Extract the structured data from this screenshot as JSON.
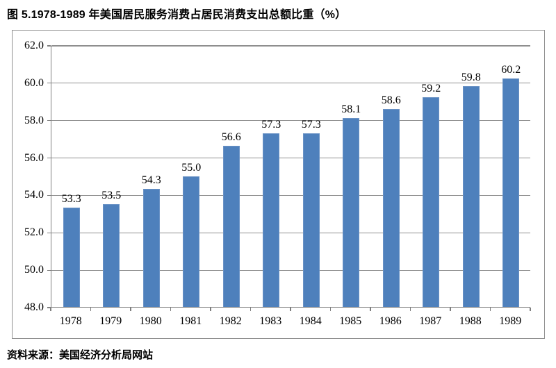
{
  "page": {
    "title": "图 5.1978-1989 年美国居民服务消费占居民消费支出总额比重（%）",
    "source_note": "资料来源：美国经济分析局网站"
  },
  "chart_data": {
    "type": "bar",
    "title": "图 5.1978-1989 年美国居民服务消费占居民消费支出总额比重（%）",
    "categories": [
      "1978",
      "1979",
      "1980",
      "1981",
      "1982",
      "1983",
      "1984",
      "1985",
      "1986",
      "1987",
      "1988",
      "1989"
    ],
    "values": [
      53.3,
      53.5,
      54.3,
      55.0,
      56.6,
      57.3,
      57.3,
      58.1,
      58.6,
      59.2,
      59.8,
      60.2
    ],
    "value_labels": [
      "53.3",
      "53.5",
      "54.3",
      "55.0",
      "56.6",
      "57.3",
      "57.3",
      "58.1",
      "58.6",
      "59.2",
      "59.8",
      "60.2"
    ],
    "xlabel": "",
    "ylabel": "",
    "ylim": [
      48.0,
      62.0
    ],
    "ytick_step": 2.0,
    "yticks": [
      "48.0",
      "50.0",
      "52.0",
      "54.0",
      "56.0",
      "58.0",
      "60.0",
      "62.0"
    ],
    "grid": true,
    "legend": "none",
    "data_labels": "above-bars",
    "source_note": "资料来源：美国经济分析局网站",
    "colors": {
      "bar_fill": "#4e80bc",
      "bar_border": "#6b93c6",
      "gridline": "#8e8e8e",
      "axis": "#7f7f7f",
      "frame_border": "#8f8f8f",
      "text": "#000000"
    }
  }
}
